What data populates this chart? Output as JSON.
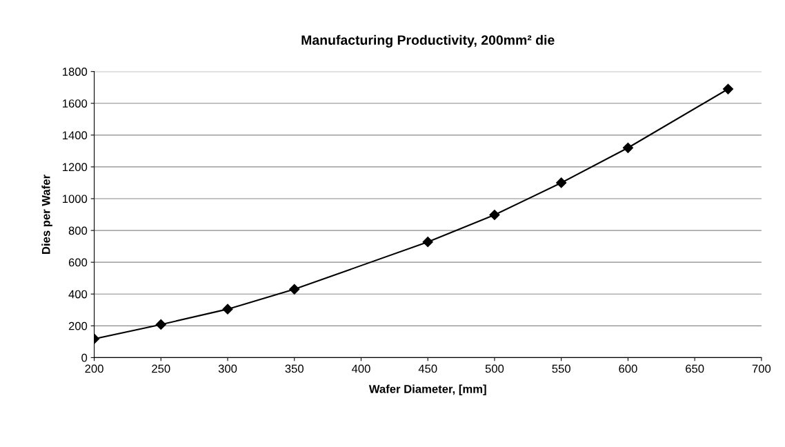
{
  "chart_data": {
    "type": "line",
    "title": "Manufacturing Productivity, 200mm² die",
    "xlabel": "Wafer Diameter, [mm]",
    "ylabel": "Dies per Wafer",
    "series": [
      {
        "x": [
          200,
          250,
          300,
          350,
          450,
          500,
          550,
          600,
          675
        ],
        "values": [
          118,
          208,
          305,
          430,
          728,
          898,
          1100,
          1320,
          1690
        ],
        "color": "#000000"
      }
    ],
    "xlim": [
      200,
      700
    ],
    "xticks": [
      200,
      250,
      300,
      350,
      400,
      450,
      500,
      550,
      600,
      650,
      700
    ],
    "ylim": [
      0,
      1800
    ],
    "yticks": [
      0,
      200,
      400,
      600,
      800,
      1000,
      1200,
      1400,
      1600,
      1800
    ],
    "grid": "y",
    "marker": "diamond",
    "line_style": "solid"
  }
}
